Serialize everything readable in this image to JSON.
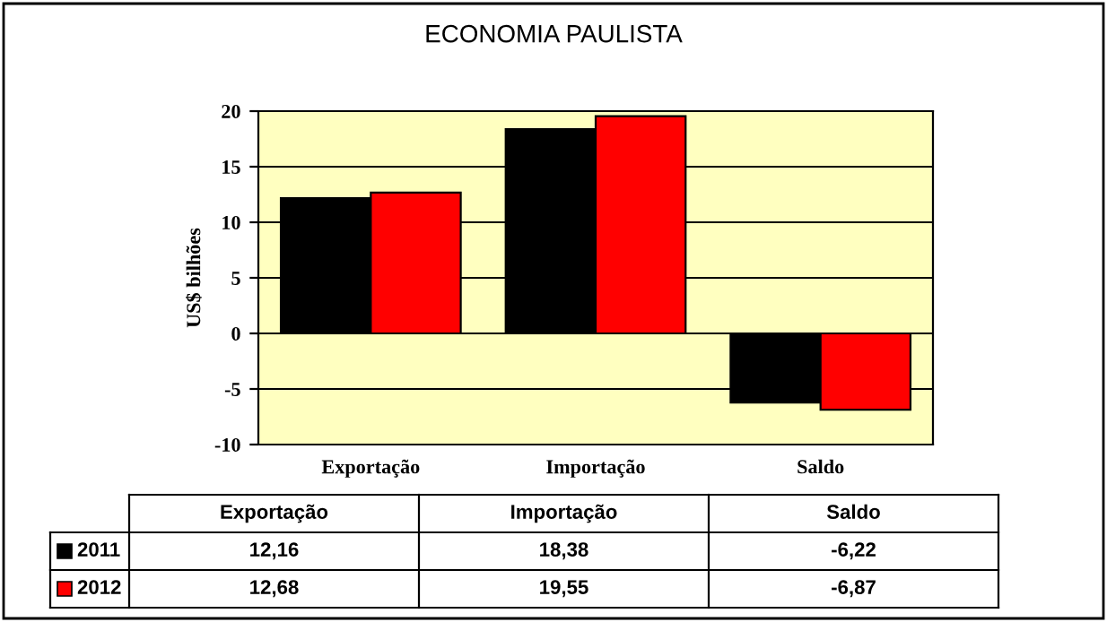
{
  "chart_data": {
    "type": "bar",
    "title": "ECONOMIA PAULISTA",
    "ylabel": "US$ bilhões",
    "categories": [
      "Exportação",
      "Importação",
      "Saldo"
    ],
    "series": [
      {
        "name": "2011",
        "color": "#000000",
        "values": [
          12.16,
          18.38,
          -6.22
        ],
        "value_labels": [
          "12,16",
          "18,38",
          "-6,22"
        ]
      },
      {
        "name": "2012",
        "color": "#ff0000",
        "values": [
          12.68,
          19.55,
          -6.87
        ],
        "value_labels": [
          "12,68",
          "19,55",
          "-6,87"
        ]
      }
    ],
    "ylim": [
      -10,
      20
    ],
    "yticks": [
      {
        "value": -10,
        "label": "-10"
      },
      {
        "value": -5,
        "label": "-5"
      },
      0,
      5,
      10,
      15,
      20
    ],
    "grid": "y",
    "legend": "bottom"
  }
}
